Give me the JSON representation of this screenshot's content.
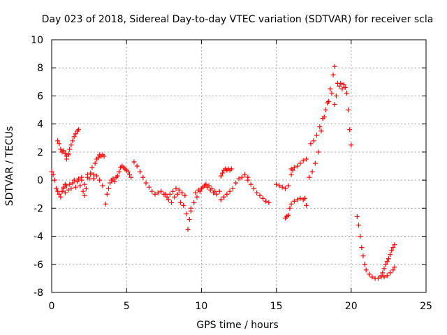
{
  "chart_data": {
    "type": "scatter",
    "title": "Day 023 of 2018, Sidereal Day-to-day VTEC variation (SDTVAR) for receiver scla",
    "xlabel": "GPS time / hours",
    "ylabel": "SDTVAR / TECUs",
    "xlim": [
      0,
      25
    ],
    "ylim": [
      -8,
      10
    ],
    "x_ticks": [
      "0",
      "5",
      "10",
      "15",
      "20",
      "25"
    ],
    "y_ticks": [
      "-8",
      "-6",
      "-4",
      "-2",
      "0",
      "2",
      "4",
      "6",
      "8",
      "10"
    ],
    "grid": true,
    "marker": "+",
    "color": "#ff0000",
    "segments": [
      {
        "x": [
          0.0,
          0.1,
          0.2,
          0.3,
          0.4,
          0.5,
          0.6,
          0.7,
          0.8,
          0.9
        ],
        "y": [
          0.6,
          0.4,
          0.0,
          -0.6,
          -0.8,
          -1.0,
          -1.2,
          -0.8,
          -0.5,
          -0.3
        ]
      },
      {
        "x": [
          0.4,
          0.5,
          0.6,
          0.7,
          0.8,
          0.9,
          1.0,
          1.1
        ],
        "y": [
          2.8,
          2.6,
          2.2,
          2.0,
          2.1,
          1.9,
          1.7,
          1.9
        ]
      },
      {
        "x": [
          1.0,
          1.1,
          1.2,
          1.3,
          1.4,
          1.5,
          1.6,
          1.7,
          1.8
        ],
        "y": [
          1.5,
          1.8,
          2.2,
          2.5,
          2.8,
          3.1,
          3.3,
          3.5,
          3.6
        ]
      },
      {
        "x": [
          0.7,
          0.8,
          0.9,
          1.0,
          1.1,
          1.2,
          1.3,
          1.4,
          1.5,
          1.6,
          1.7,
          1.8,
          1.9,
          2.0,
          2.1,
          2.2,
          2.3,
          2.4,
          2.5,
          2.6,
          2.7,
          2.8,
          2.9,
          3.0,
          3.1,
          3.2,
          3.3,
          3.4,
          3.5
        ],
        "y": [
          -0.8,
          -0.6,
          -0.9,
          -0.4,
          -0.7,
          -0.3,
          -0.6,
          -0.2,
          0.0,
          -0.5,
          -0.1,
          0.1,
          -0.4,
          0.2,
          -0.8,
          -1.1,
          -0.6,
          0.4,
          0.1,
          0.5,
          0.9,
          0.4,
          1.2,
          1.5,
          1.6,
          1.8,
          1.7,
          1.8,
          1.7
        ]
      },
      {
        "x": [
          2.0,
          2.2,
          2.4,
          2.6,
          2.8,
          3.0,
          3.2,
          3.4
        ],
        "y": [
          0.0,
          -0.3,
          0.2,
          0.4,
          0.1,
          0.3,
          0.0,
          -0.4
        ]
      },
      {
        "x": [
          3.6,
          3.7,
          3.8,
          3.9,
          4.0,
          4.1,
          4.2,
          4.3,
          4.4,
          4.5,
          4.6,
          4.7,
          4.8,
          4.9,
          5.0,
          5.1,
          5.2,
          5.3
        ],
        "y": [
          -1.7,
          -1.0,
          -0.6,
          -0.2,
          0.0,
          0.1,
          -0.1,
          0.2,
          0.3,
          0.6,
          0.9,
          1.0,
          0.9,
          0.8,
          0.7,
          0.6,
          0.4,
          0.2
        ]
      },
      {
        "x": [
          5.5,
          5.7,
          5.9,
          6.1,
          6.3,
          6.5,
          6.7,
          6.9,
          7.1,
          7.3,
          7.5,
          7.7,
          7.9,
          8.1,
          8.3,
          8.5,
          8.7,
          8.9
        ],
        "y": [
          1.3,
          1.0,
          0.6,
          0.2,
          -0.2,
          -0.5,
          -0.8,
          -1.0,
          -0.9,
          -0.8,
          -1.0,
          -1.2,
          -1.0,
          -0.8,
          -0.6,
          -0.7,
          -0.9,
          -1.1
        ]
      },
      {
        "x": [
          7.6,
          7.8,
          8.0,
          8.2,
          8.4,
          8.6,
          8.8,
          9.0,
          9.1,
          9.2,
          9.3
        ],
        "y": [
          -1.0,
          -1.4,
          -1.6,
          -1.2,
          -1.0,
          -1.6,
          -1.8,
          -2.4,
          -3.5,
          -2.8,
          -2.2
        ]
      },
      {
        "x": [
          9.3,
          9.5,
          9.7,
          9.9,
          10.1,
          10.3,
          10.5,
          10.7,
          10.9
        ],
        "y": [
          -2.0,
          -1.6,
          -1.2,
          -0.8,
          -0.5,
          -0.3,
          -0.4,
          -0.6,
          -0.8
        ]
      },
      {
        "x": [
          9.6,
          9.8,
          10.0,
          10.2,
          10.4,
          10.6,
          10.8,
          11.0,
          11.2
        ],
        "y": [
          -0.9,
          -0.7,
          -0.6,
          -0.4,
          -0.5,
          -0.7,
          -0.9,
          -1.0,
          -0.8
        ]
      },
      {
        "x": [
          11.3,
          11.4,
          11.5,
          11.6,
          11.7,
          11.8,
          11.9,
          12.0
        ],
        "y": [
          0.3,
          0.5,
          0.7,
          0.8,
          0.7,
          0.8,
          0.7,
          0.8
        ]
      },
      {
        "x": [
          11.3,
          11.5,
          11.7,
          11.9,
          12.1,
          12.3,
          12.5,
          12.7,
          12.9,
          13.1
        ],
        "y": [
          -1.4,
          -1.2,
          -1.0,
          -0.8,
          -0.6,
          -0.2,
          0.1,
          0.2,
          0.4,
          0.2
        ]
      },
      {
        "x": [
          13.1,
          13.3,
          13.5,
          13.7,
          13.9,
          14.1,
          14.3,
          14.5
        ],
        "y": [
          0.0,
          -0.3,
          -0.6,
          -0.9,
          -1.1,
          -1.3,
          -1.5,
          -1.6
        ]
      },
      {
        "x": [
          15.0,
          15.2,
          15.4,
          15.6,
          15.8,
          16.0,
          16.1
        ],
        "y": [
          -0.3,
          -0.4,
          -0.5,
          -0.6,
          -0.4,
          0.4,
          0.7
        ]
      },
      {
        "x": [
          16.0,
          16.2,
          16.4,
          16.6,
          16.8,
          17.0
        ],
        "y": [
          0.8,
          0.9,
          1.0,
          1.2,
          1.4,
          1.5
        ]
      },
      {
        "x": [
          15.6,
          15.7,
          15.8,
          15.9,
          16.0,
          16.2,
          16.4,
          16.6,
          16.8,
          16.9
        ],
        "y": [
          -2.7,
          -2.6,
          -2.5,
          -2.0,
          -1.7,
          -1.5,
          -1.4,
          -1.3,
          -1.4,
          -1.3
        ]
      },
      {
        "x": [
          17.0
        ],
        "y": [
          -1.8
        ]
      },
      {
        "x": [
          17.2,
          17.4,
          17.6,
          17.8,
          18.0,
          18.2,
          18.4,
          18.6,
          18.8,
          18.9
        ],
        "y": [
          0.2,
          0.6,
          1.2,
          2.0,
          3.5,
          4.5,
          5.5,
          6.5,
          7.5,
          8.1
        ]
      },
      {
        "x": [
          17.3,
          17.5,
          17.7,
          17.9,
          18.1,
          18.3,
          18.5,
          18.7
        ],
        "y": [
          2.6,
          2.8,
          3.2,
          3.8,
          4.4,
          5.0,
          5.6,
          6.2
        ]
      },
      {
        "x": [
          18.9,
          19.0,
          19.1,
          19.2,
          19.3,
          19.4,
          19.5,
          19.6,
          19.7,
          19.8,
          19.9,
          20.0
        ],
        "y": [
          5.4,
          6.0,
          6.9,
          6.7,
          6.9,
          6.5,
          6.8,
          6.6,
          6.2,
          5.0,
          3.6,
          2.5
        ]
      },
      {
        "x": [
          20.4,
          20.5,
          20.6,
          20.7,
          20.8,
          20.9,
          21.0,
          21.2,
          21.4,
          21.6,
          21.8,
          22.0
        ],
        "y": [
          -2.6,
          -3.2,
          -4.0,
          -4.8,
          -5.4,
          -6.0,
          -6.4,
          -6.7,
          -6.9,
          -7.0,
          -7.0,
          -6.9
        ]
      },
      {
        "x": [
          22.0,
          22.1,
          22.2,
          22.3,
          22.4,
          22.5,
          22.6,
          22.7,
          22.8,
          22.9
        ],
        "y": [
          -6.8,
          -6.6,
          -6.3,
          -6.0,
          -5.8,
          -5.6,
          -5.3,
          -5.0,
          -4.8,
          -4.6
        ]
      },
      {
        "x": [
          22.2,
          22.4,
          22.6,
          22.8,
          22.9
        ],
        "y": [
          -6.9,
          -6.8,
          -6.6,
          -6.4,
          -6.2
        ]
      }
    ]
  }
}
